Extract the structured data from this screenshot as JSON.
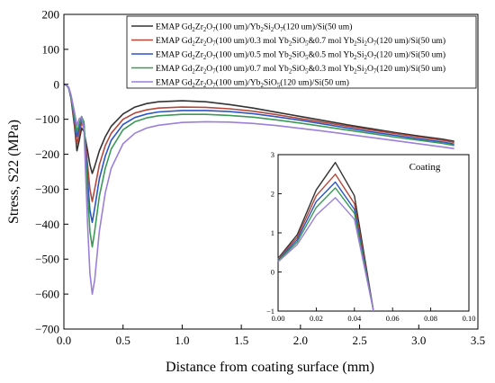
{
  "chart_data": {
    "type": "line",
    "xlabel": "Distance from coating surface (mm)",
    "ylabel": "Stress, S22 (MPa)",
    "xlim": [
      0,
      3.5
    ],
    "ylim": [
      -700,
      200
    ],
    "xticks": [
      0.0,
      0.5,
      1.0,
      1.5,
      2.0,
      2.5,
      3.0,
      3.5
    ],
    "yticks": [
      -700,
      -600,
      -500,
      -400,
      -300,
      -200,
      -100,
      0,
      100,
      200
    ],
    "xtick_labels": [
      "0.0",
      "0.5",
      "1.0",
      "1.5",
      "2.0",
      "2.5",
      "3.0",
      "3.5"
    ],
    "ytick_labels": [
      "−700",
      "−600",
      "−500",
      "−400",
      "−300",
      "−200",
      "−100",
      "0",
      "100",
      "200"
    ],
    "grid": false,
    "legend_position": "top-right",
    "series": [
      {
        "name": "EMAP Gd2Zr2O7(100 um)/Yb2Si2O7(120 um)/Si(50 um)",
        "color": "#333333",
        "x": [
          0.0,
          0.02,
          0.04,
          0.06,
          0.09,
          0.11,
          0.13,
          0.15,
          0.17,
          0.2,
          0.22,
          0.24,
          0.26,
          0.3,
          0.35,
          0.4,
          0.5,
          0.6,
          0.7,
          0.8,
          1.0,
          1.2,
          1.4,
          1.6,
          1.8,
          2.0,
          2.2,
          2.4,
          2.6,
          2.8,
          3.0,
          3.2,
          3.3
        ],
        "y": [
          0,
          -2,
          -10,
          -40,
          -120,
          -190,
          -160,
          -125,
          -135,
          -190,
          -230,
          -255,
          -235,
          -190,
          -150,
          -120,
          -85,
          -65,
          -55,
          -50,
          -47,
          -50,
          -58,
          -68,
          -80,
          -92,
          -104,
          -116,
          -127,
          -138,
          -148,
          -157,
          -163
        ]
      },
      {
        "name": "EMAP Gd2Zr2O7(100 um)/0.3 mol Yb2SiO5&0.7 mol Yb2Si2O7(120 um)/Si(50 um)",
        "color": "#b5473a",
        "x": [
          0.0,
          0.02,
          0.04,
          0.06,
          0.09,
          0.11,
          0.13,
          0.15,
          0.17,
          0.2,
          0.22,
          0.24,
          0.26,
          0.3,
          0.35,
          0.4,
          0.5,
          0.6,
          0.7,
          0.8,
          1.0,
          1.2,
          1.4,
          1.6,
          1.8,
          2.0,
          2.2,
          2.4,
          2.6,
          2.8,
          3.0,
          3.2,
          3.3
        ],
        "y": [
          0,
          -2,
          -10,
          -38,
          -110,
          -170,
          -140,
          -110,
          -125,
          -230,
          -300,
          -335,
          -300,
          -230,
          -175,
          -140,
          -100,
          -82,
          -73,
          -68,
          -65,
          -66,
          -70,
          -77,
          -87,
          -98,
          -109,
          -120,
          -131,
          -141,
          -151,
          -160,
          -166
        ]
      },
      {
        "name": "EMAP Gd2Zr2O7(100 um)/0.5 mol Yb2SiO5&0.5 mol Yb2Si2O7(120 um)/Si(50 um)",
        "color": "#2a56c6",
        "x": [
          0.0,
          0.02,
          0.04,
          0.06,
          0.09,
          0.11,
          0.13,
          0.15,
          0.17,
          0.2,
          0.22,
          0.24,
          0.26,
          0.3,
          0.35,
          0.4,
          0.5,
          0.6,
          0.7,
          0.8,
          1.0,
          1.2,
          1.4,
          1.6,
          1.8,
          2.0,
          2.2,
          2.4,
          2.6,
          2.8,
          3.0,
          3.2,
          3.3
        ],
        "y": [
          0,
          -2,
          -10,
          -36,
          -100,
          -150,
          -125,
          -100,
          -115,
          -270,
          -360,
          -395,
          -355,
          -270,
          -205,
          -160,
          -115,
          -95,
          -85,
          -79,
          -75,
          -75,
          -78,
          -84,
          -93,
          -103,
          -114,
          -125,
          -136,
          -146,
          -156,
          -165,
          -171
        ]
      },
      {
        "name": "EMAP Gd2Zr2O7(100 um)/0.7 mol Yb2SiO5&0.3 mol Yb2Si2O7(120 um)/Si(50 um)",
        "color": "#3a9a55",
        "x": [
          0.0,
          0.02,
          0.04,
          0.06,
          0.09,
          0.11,
          0.13,
          0.15,
          0.17,
          0.2,
          0.22,
          0.24,
          0.26,
          0.3,
          0.35,
          0.4,
          0.5,
          0.6,
          0.7,
          0.8,
          1.0,
          1.2,
          1.4,
          1.6,
          1.8,
          2.0,
          2.2,
          2.4,
          2.6,
          2.8,
          3.0,
          3.2,
          3.3
        ],
        "y": [
          0,
          -2,
          -9,
          -34,
          -92,
          -135,
          -112,
          -92,
          -108,
          -310,
          -420,
          -465,
          -420,
          -320,
          -240,
          -185,
          -130,
          -107,
          -96,
          -90,
          -86,
          -86,
          -89,
          -94,
          -102,
          -111,
          -121,
          -131,
          -141,
          -151,
          -160,
          -169,
          -175
        ]
      },
      {
        "name": "EMAP Gd2Zr2O7(100 um)/Yb2SiO5(120 um)/Si(50 um)",
        "color": "#9b7fd8",
        "x": [
          0.0,
          0.02,
          0.04,
          0.06,
          0.09,
          0.11,
          0.13,
          0.15,
          0.17,
          0.2,
          0.22,
          0.24,
          0.26,
          0.3,
          0.35,
          0.4,
          0.5,
          0.6,
          0.7,
          0.8,
          1.0,
          1.2,
          1.4,
          1.6,
          1.8,
          2.0,
          2.2,
          2.4,
          2.6,
          2.8,
          3.0,
          3.2,
          3.3
        ],
        "y": [
          0,
          -2,
          -8,
          -30,
          -80,
          -118,
          -98,
          -95,
          -130,
          -400,
          -540,
          -600,
          -560,
          -420,
          -310,
          -240,
          -170,
          -140,
          -125,
          -117,
          -109,
          -107,
          -108,
          -112,
          -118,
          -126,
          -134,
          -143,
          -152,
          -161,
          -170,
          -179,
          -184
        ]
      }
    ],
    "inset": {
      "title": "Coating",
      "xlim": [
        0,
        0.1
      ],
      "ylim": [
        -1,
        3
      ],
      "xticks": [
        0.0,
        0.02,
        0.04,
        0.06,
        0.08,
        0.1
      ],
      "yticks": [
        -1,
        0,
        1,
        2,
        3
      ],
      "xtick_labels": [
        "0.00",
        "0.02",
        "0.04",
        "0.06",
        "0.08",
        "0.10"
      ],
      "ytick_labels": [
        "−1",
        "0",
        "1",
        "2",
        "3"
      ],
      "series": [
        {
          "color": "#333333",
          "x": [
            0.0,
            0.01,
            0.02,
            0.03,
            0.04,
            0.05
          ],
          "y": [
            0.35,
            0.95,
            2.1,
            2.8,
            1.95,
            -1
          ]
        },
        {
          "color": "#b5473a",
          "x": [
            0.0,
            0.01,
            0.02,
            0.03,
            0.04,
            0.05
          ],
          "y": [
            0.33,
            0.88,
            1.95,
            2.5,
            1.75,
            -1
          ]
        },
        {
          "color": "#2a56c6",
          "x": [
            0.0,
            0.01,
            0.02,
            0.03,
            0.04,
            0.05
          ],
          "y": [
            0.3,
            0.82,
            1.8,
            2.3,
            1.6,
            -1
          ]
        },
        {
          "color": "#3a9a55",
          "x": [
            0.0,
            0.01,
            0.02,
            0.03,
            0.04,
            0.05
          ],
          "y": [
            0.28,
            0.76,
            1.65,
            2.15,
            1.5,
            -1
          ]
        },
        {
          "color": "#9b7fd8",
          "x": [
            0.0,
            0.01,
            0.02,
            0.03,
            0.04,
            0.05
          ],
          "y": [
            0.26,
            0.7,
            1.45,
            1.9,
            1.35,
            -1
          ]
        }
      ]
    }
  }
}
